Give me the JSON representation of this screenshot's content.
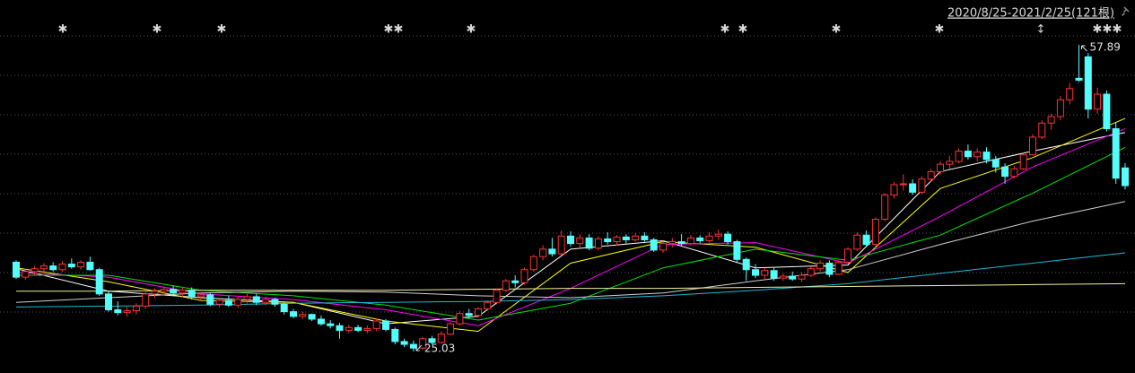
{
  "chart_data": {
    "type": "candlestick",
    "title": "2020/8/25-2021/2/25(121根)",
    "ylim": [
      22.73,
      62.69
    ],
    "up_color": "#ff3232",
    "down_color": "#54fcfc",
    "open": [
      34.6,
      33.0,
      33.6,
      33.9,
      34.2,
      33.8,
      34.4,
      34.1,
      34.6,
      33.8,
      31.2,
      29.5,
      29.2,
      29.4,
      29.9,
      31.2,
      31.5,
      31.7,
      31.3,
      31.6,
      30.9,
      31.1,
      30.1,
      30.5,
      30.0,
      30.6,
      30.9,
      30.3,
      30.6,
      30.1,
      29.3,
      28.8,
      29.0,
      28.5,
      28.0,
      27.8,
      27.3,
      27.6,
      27.3,
      27.5,
      28.3,
      27.4,
      26.1,
      25.8,
      25.4,
      26.4,
      26.0,
      26.9,
      28.0,
      29.1,
      28.9,
      29.6,
      30.3,
      31.6,
      32.6,
      32.4,
      33.8,
      35.2,
      36.0,
      35.5,
      37.4,
      36.6,
      37.2,
      36.1,
      37.1,
      36.8,
      37.3,
      37.0,
      37.4,
      37.0,
      35.9,
      36.6,
      36.8,
      36.6,
      37.2,
      36.9,
      37.4,
      37.6,
      36.8,
      34.9,
      33.8,
      33.2,
      33.7,
      32.9,
      33.1,
      32.8,
      33.2,
      33.9,
      34.5,
      33.3,
      34.6,
      36.0,
      37.5,
      36.5,
      39.2,
      41.8,
      42.9,
      43.0,
      42.1,
      43.5,
      44.3,
      45.1,
      45.4,
      46.5,
      45.9,
      46.4,
      45.6,
      44.8,
      43.8,
      44.6,
      46.1,
      48.0,
      49.5,
      50.2,
      52.0,
      54.3,
      56.6,
      51.0,
      52.6,
      48.9,
      44.7
    ],
    "high": [
      34.8,
      33.9,
      34.2,
      34.5,
      34.6,
      34.7,
      35.0,
      34.8,
      35.2,
      34.0,
      31.5,
      30.4,
      29.8,
      30.2,
      31.5,
      31.8,
      32.0,
      32.1,
      31.9,
      31.9,
      31.4,
      31.3,
      30.8,
      31.0,
      30.9,
      31.2,
      31.2,
      30.9,
      30.8,
      30.4,
      29.6,
      29.3,
      29.1,
      28.9,
      28.4,
      28.1,
      27.9,
      27.9,
      27.8,
      28.6,
      28.5,
      27.6,
      26.4,
      26.2,
      26.6,
      26.7,
      27.2,
      28.2,
      29.4,
      29.6,
      29.8,
      30.5,
      31.8,
      32.8,
      33.2,
      34.0,
      35.4,
      36.4,
      37.2,
      38.0,
      37.9,
      37.6,
      37.6,
      37.4,
      37.8,
      37.5,
      37.6,
      37.7,
      37.8,
      37.2,
      36.9,
      37.2,
      37.6,
      37.5,
      37.5,
      37.8,
      38.1,
      37.9,
      37.0,
      35.1,
      34.4,
      34.0,
      34.0,
      33.4,
      33.6,
      33.5,
      34.1,
      34.8,
      34.8,
      34.8,
      36.2,
      37.8,
      38.0,
      39.4,
      42.0,
      43.2,
      44.0,
      43.5,
      43.8,
      44.6,
      45.4,
      46.0,
      46.8,
      47.2,
      46.8,
      46.9,
      46.0,
      45.2,
      44.9,
      46.3,
      48.3,
      49.8,
      50.5,
      52.4,
      53.8,
      57.89,
      57.0,
      53.3,
      53.0,
      49.6,
      45.2
    ],
    "low": [
      32.8,
      32.7,
      33.2,
      33.5,
      33.6,
      33.6,
      33.9,
      33.8,
      33.7,
      31.0,
      29.3,
      28.9,
      28.8,
      29.0,
      29.6,
      30.8,
      31.0,
      31.1,
      30.9,
      30.6,
      30.5,
      29.9,
      29.8,
      29.8,
      29.7,
      30.2,
      30.0,
      30.0,
      29.8,
      29.0,
      28.6,
      28.5,
      28.3,
      27.8,
      27.5,
      26.4,
      27.0,
      27.1,
      27.0,
      27.2,
      27.2,
      25.8,
      25.5,
      25.03,
      25.2,
      25.8,
      25.9,
      26.8,
      27.8,
      28.6,
      28.7,
      29.4,
      30.1,
      31.4,
      31.9,
      32.2,
      33.6,
      34.8,
      35.2,
      35.3,
      36.3,
      36.2,
      35.9,
      35.9,
      36.5,
      36.4,
      36.6,
      36.8,
      36.8,
      35.7,
      35.6,
      36.2,
      36.3,
      36.4,
      36.6,
      36.7,
      37.0,
      36.5,
      34.5,
      32.6,
      32.9,
      32.8,
      32.6,
      32.6,
      32.6,
      32.5,
      33.0,
      33.6,
      33.0,
      33.2,
      34.4,
      35.8,
      36.2,
      36.3,
      39.0,
      41.4,
      42.3,
      41.8,
      41.9,
      43.2,
      44.0,
      44.6,
      45.2,
      45.6,
      45.4,
      45.2,
      44.2,
      43.0,
      43.6,
      44.5,
      46.0,
      47.8,
      48.8,
      49.8,
      51.5,
      53.9,
      50.0,
      50.5,
      48.6,
      43.0,
      42.4
    ],
    "close": [
      33.0,
      33.6,
      33.9,
      34.2,
      33.8,
      34.4,
      34.1,
      34.6,
      33.8,
      31.2,
      29.5,
      29.2,
      29.4,
      29.9,
      31.2,
      31.5,
      31.7,
      31.3,
      31.6,
      30.9,
      31.1,
      30.1,
      30.5,
      30.0,
      30.6,
      30.9,
      30.3,
      30.6,
      30.1,
      29.3,
      28.8,
      29.0,
      28.5,
      28.0,
      27.8,
      27.3,
      27.6,
      27.3,
      27.5,
      28.3,
      27.4,
      26.1,
      25.8,
      25.4,
      26.4,
      26.0,
      26.9,
      28.0,
      29.1,
      28.9,
      29.6,
      30.3,
      31.6,
      32.6,
      32.4,
      33.8,
      35.2,
      36.0,
      35.5,
      37.4,
      36.6,
      37.2,
      36.1,
      37.1,
      36.8,
      37.3,
      37.0,
      37.4,
      37.0,
      35.9,
      36.6,
      36.8,
      36.6,
      37.2,
      36.9,
      37.4,
      37.6,
      36.8,
      34.9,
      33.8,
      33.2,
      33.7,
      32.9,
      33.1,
      32.8,
      33.2,
      33.9,
      34.5,
      33.3,
      34.6,
      36.0,
      37.5,
      36.5,
      39.2,
      41.8,
      42.9,
      43.0,
      42.1,
      43.5,
      44.3,
      45.1,
      45.4,
      46.5,
      45.9,
      46.4,
      45.6,
      44.8,
      43.8,
      44.6,
      46.1,
      48.0,
      49.5,
      50.2,
      52.0,
      53.2,
      54.1,
      51.0,
      52.6,
      48.9,
      43.6,
      42.8
    ],
    "series": [
      {
        "color": "#ffffff",
        "x": [
          0,
          10,
          20,
          30,
          40,
          50,
          60,
          70,
          80,
          90,
          100,
          110,
          120
        ],
        "values": [
          33.9,
          31.5,
          30.8,
          30.3,
          28.0,
          28.8,
          36.0,
          36.9,
          34.0,
          34.3,
          44.3,
          46.5,
          48.5
        ]
      },
      {
        "color": "#ffff00",
        "x": [
          0,
          10,
          20,
          30,
          40,
          50,
          60,
          70,
          80,
          90,
          100,
          110,
          120
        ],
        "values": [
          34.0,
          32.5,
          30.5,
          30.3,
          28.3,
          27.2,
          34.5,
          36.8,
          36.2,
          33.5,
          42.5,
          45.8,
          50.0
        ]
      },
      {
        "color": "#ff00ff",
        "x": [
          0,
          10,
          20,
          30,
          40,
          50,
          60,
          70,
          80,
          90,
          100,
          110,
          120
        ],
        "values": [
          33.5,
          33.0,
          31.2,
          30.6,
          29.5,
          27.8,
          31.8,
          36.5,
          36.7,
          34.5,
          39.5,
          44.8,
          48.9
        ]
      },
      {
        "color": "#00e600",
        "x": [
          0,
          10,
          20,
          30,
          40,
          50,
          60,
          70,
          80,
          90,
          100,
          110,
          120
        ],
        "values": [
          33.2,
          33.2,
          31.6,
          31.0,
          30.0,
          28.4,
          30.2,
          34.0,
          36.0,
          34.8,
          37.5,
          42.0,
          46.9
        ]
      },
      {
        "color": "#d0d0d0",
        "x": [
          0,
          10,
          20,
          30,
          40,
          50,
          60,
          70,
          80,
          90,
          100,
          110,
          120
        ],
        "values": [
          30.3,
          30.8,
          31.3,
          31.5,
          31.4,
          31.0,
          30.8,
          31.3,
          32.6,
          33.8,
          36.5,
          39.0,
          41.1
        ]
      },
      {
        "color": "#1fb8d6",
        "x": [
          0,
          10,
          20,
          30,
          40,
          50,
          60,
          70,
          80,
          90,
          100,
          110,
          120
        ],
        "values": [
          29.8,
          29.9,
          30.0,
          30.2,
          30.3,
          30.4,
          30.6,
          31.0,
          31.6,
          32.3,
          33.4,
          34.5,
          35.6
        ]
      },
      {
        "color": "#f0f0a0",
        "x": [
          0,
          10,
          20,
          30,
          40,
          50,
          60,
          70,
          80,
          90,
          100,
          110,
          120
        ],
        "values": [
          31.5,
          31.5,
          31.6,
          31.6,
          31.6,
          31.7,
          31.8,
          31.8,
          31.9,
          32.0,
          32.1,
          32.2,
          32.3
        ]
      }
    ]
  }
}
